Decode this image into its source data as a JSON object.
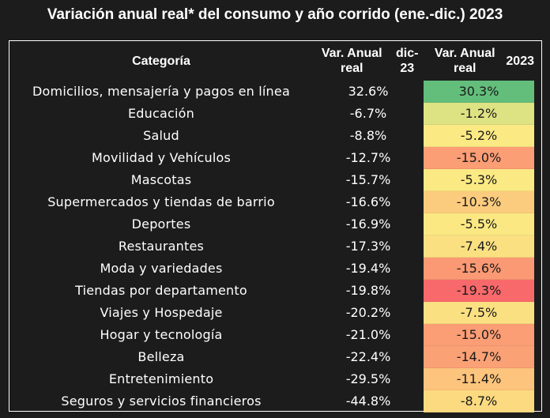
{
  "title": "Variación anual real* del consumo y año corrido (ene.-dic.) 2023",
  "chart_data": {
    "type": "table",
    "columns": {
      "category": "Categoría",
      "dic23": "Var. Anual real dic-23",
      "year2023": "Var. Anual real 2023"
    },
    "rows": [
      {
        "category": "Domicilios, mensajería y pagos en línea",
        "dic23": "32.6%",
        "year2023": "30.3%",
        "dic23_value": 32.6,
        "year2023_value": 30.3,
        "color": "#63be7b"
      },
      {
        "category": "Educación",
        "dic23": "-6.7%",
        "year2023": "-1.2%",
        "dic23_value": -6.7,
        "year2023_value": -1.2,
        "color": "#dde283"
      },
      {
        "category": "Salud",
        "dic23": "-8.8%",
        "year2023": "-5.2%",
        "dic23_value": -8.8,
        "year2023_value": -5.2,
        "color": "#fbe983"
      },
      {
        "category": "Movilidad y Vehículos",
        "dic23": "-12.7%",
        "year2023": "-15.0%",
        "dic23_value": -12.7,
        "year2023_value": -15.0,
        "color": "#fb9d75"
      },
      {
        "category": "Mascotas",
        "dic23": "-15.7%",
        "year2023": "-5.3%",
        "dic23_value": -15.7,
        "year2023_value": -5.3,
        "color": "#fbe983"
      },
      {
        "category": "Supermercados y tiendas de barrio",
        "dic23": "-16.6%",
        "year2023": "-10.3%",
        "dic23_value": -16.6,
        "year2023_value": -10.3,
        "color": "#fccc7e"
      },
      {
        "category": "Deportes",
        "dic23": "-16.9%",
        "year2023": "-5.5%",
        "dic23_value": -16.9,
        "year2023_value": -5.5,
        "color": "#fbe883"
      },
      {
        "category": "Restaurantes",
        "dic23": "-17.3%",
        "year2023": "-7.4%",
        "dic23_value": -17.3,
        "year2023_value": -7.4,
        "color": "#fbe081"
      },
      {
        "category": "Moda y variedades",
        "dic23": "-19.4%",
        "year2023": "-15.6%",
        "dic23_value": -19.4,
        "year2023_value": -15.6,
        "color": "#fa9974"
      },
      {
        "category": "Tiendas por departamento",
        "dic23": "-19.8%",
        "year2023": "-19.3%",
        "dic23_value": -19.8,
        "year2023_value": -19.3,
        "color": "#f8696b"
      },
      {
        "category": "Viajes y Hospedaje",
        "dic23": "-20.2%",
        "year2023": "-7.5%",
        "dic23_value": -20.2,
        "year2023_value": -7.5,
        "color": "#fbe081"
      },
      {
        "category": "Hogar y tecnología",
        "dic23": "-21.0%",
        "year2023": "-15.0%",
        "dic23_value": -21.0,
        "year2023_value": -15.0,
        "color": "#fb9d75"
      },
      {
        "category": "Belleza",
        "dic23": "-22.4%",
        "year2023": "-14.7%",
        "dic23_value": -22.4,
        "year2023_value": -14.7,
        "color": "#fba176"
      },
      {
        "category": "Entretenimiento",
        "dic23": "-29.5%",
        "year2023": "-11.4%",
        "dic23_value": -29.5,
        "year2023_value": -11.4,
        "color": "#fcc47c"
      },
      {
        "category": "Seguros y servicios financieros",
        "dic23": "-44.8%",
        "year2023": "-8.7%",
        "dic23_value": -44.8,
        "year2023_value": -8.7,
        "color": "#fbda80"
      }
    ]
  }
}
